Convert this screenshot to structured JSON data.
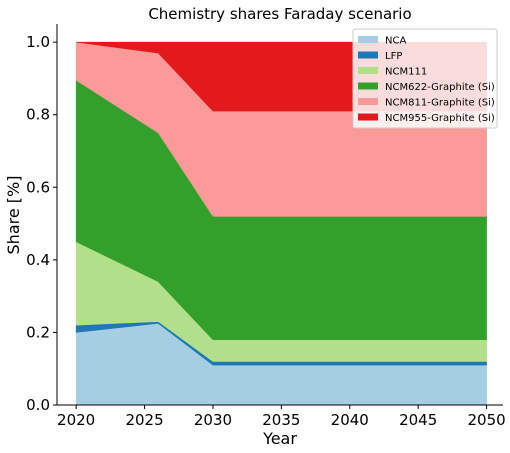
{
  "chart_data": {
    "type": "area",
    "title": "Chemistry shares Faraday scenario",
    "xlabel": "Year",
    "ylabel": "Share [%]",
    "x": [
      2020,
      2026,
      2030,
      2050
    ],
    "xlim": [
      2018.6,
      2051.2
    ],
    "ylim": [
      0,
      1.05
    ],
    "xticks": [
      "2020",
      "2025",
      "2030",
      "2035",
      "2040",
      "2045",
      "2050"
    ],
    "yticks": [
      "0.0",
      "0.2",
      "0.4",
      "0.6",
      "0.8",
      "1.0"
    ],
    "legend_position": "top-right",
    "stacked": true,
    "series": [
      {
        "name": "NCA",
        "color": "#a6cee3",
        "values": [
          0.2,
          0.225,
          0.11,
          0.11
        ]
      },
      {
        "name": "LFP",
        "color": "#1f78b4",
        "values": [
          0.02,
          0.005,
          0.01,
          0.01
        ]
      },
      {
        "name": "NCM111",
        "color": "#b2df8a",
        "values": [
          0.23,
          0.11,
          0.06,
          0.06
        ]
      },
      {
        "name": "NCM622-Graphite (Si)",
        "color": "#33a02c",
        "values": [
          0.445,
          0.41,
          0.34,
          0.34
        ]
      },
      {
        "name": "NCM811-Graphite (Si)",
        "color": "#fb9a99",
        "values": [
          0.105,
          0.22,
          0.29,
          0.29
        ]
      },
      {
        "name": "NCM955-Graphite (Si)",
        "color": "#e31a1c",
        "values": [
          0.0,
          0.03,
          0.19,
          0.19
        ]
      }
    ]
  }
}
